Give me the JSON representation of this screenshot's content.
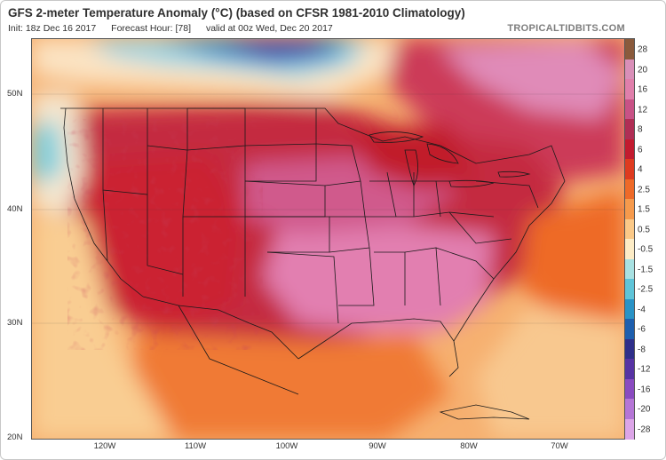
{
  "header": {
    "title": "GFS 2-meter Temperature Anomaly (°C) (based on CFSR 1981-2010 Climatology)",
    "init": "Init: 18z Dec 16 2017",
    "forecast_hour": "Forecast Hour: [78]",
    "valid": "valid at 00z Wed, Dec 20 2017",
    "brand": "TROPICALTIDBITS.COM"
  },
  "map": {
    "lat_labels": [
      "50N",
      "40N",
      "30N",
      "20N"
    ],
    "lon_labels": [
      "120W",
      "110W",
      "100W",
      "90W",
      "80W",
      "70W"
    ]
  },
  "colorbar": {
    "labels": [
      "28",
      "20",
      "16",
      "12",
      "8",
      "6",
      "4",
      "2.5",
      "1.5",
      "0.5",
      "-0.5",
      "-1.5",
      "-2.5",
      "-4",
      "-6",
      "-8",
      "-12",
      "-16",
      "-20",
      "-28"
    ],
    "colors": [
      "#8a5a3c",
      "#d98fb8",
      "#e07fab",
      "#c85286",
      "#b02e55",
      "#c21b2f",
      "#de3b20",
      "#ee6a28",
      "#f69a4c",
      "#fbc988",
      "#fdecc6",
      "#a8e1e2",
      "#5fc4d8",
      "#2a93c6",
      "#1e5fae",
      "#2f2f8a",
      "#5733a3",
      "#8a4bc0",
      "#b576d6",
      "#dca5e8"
    ]
  }
}
